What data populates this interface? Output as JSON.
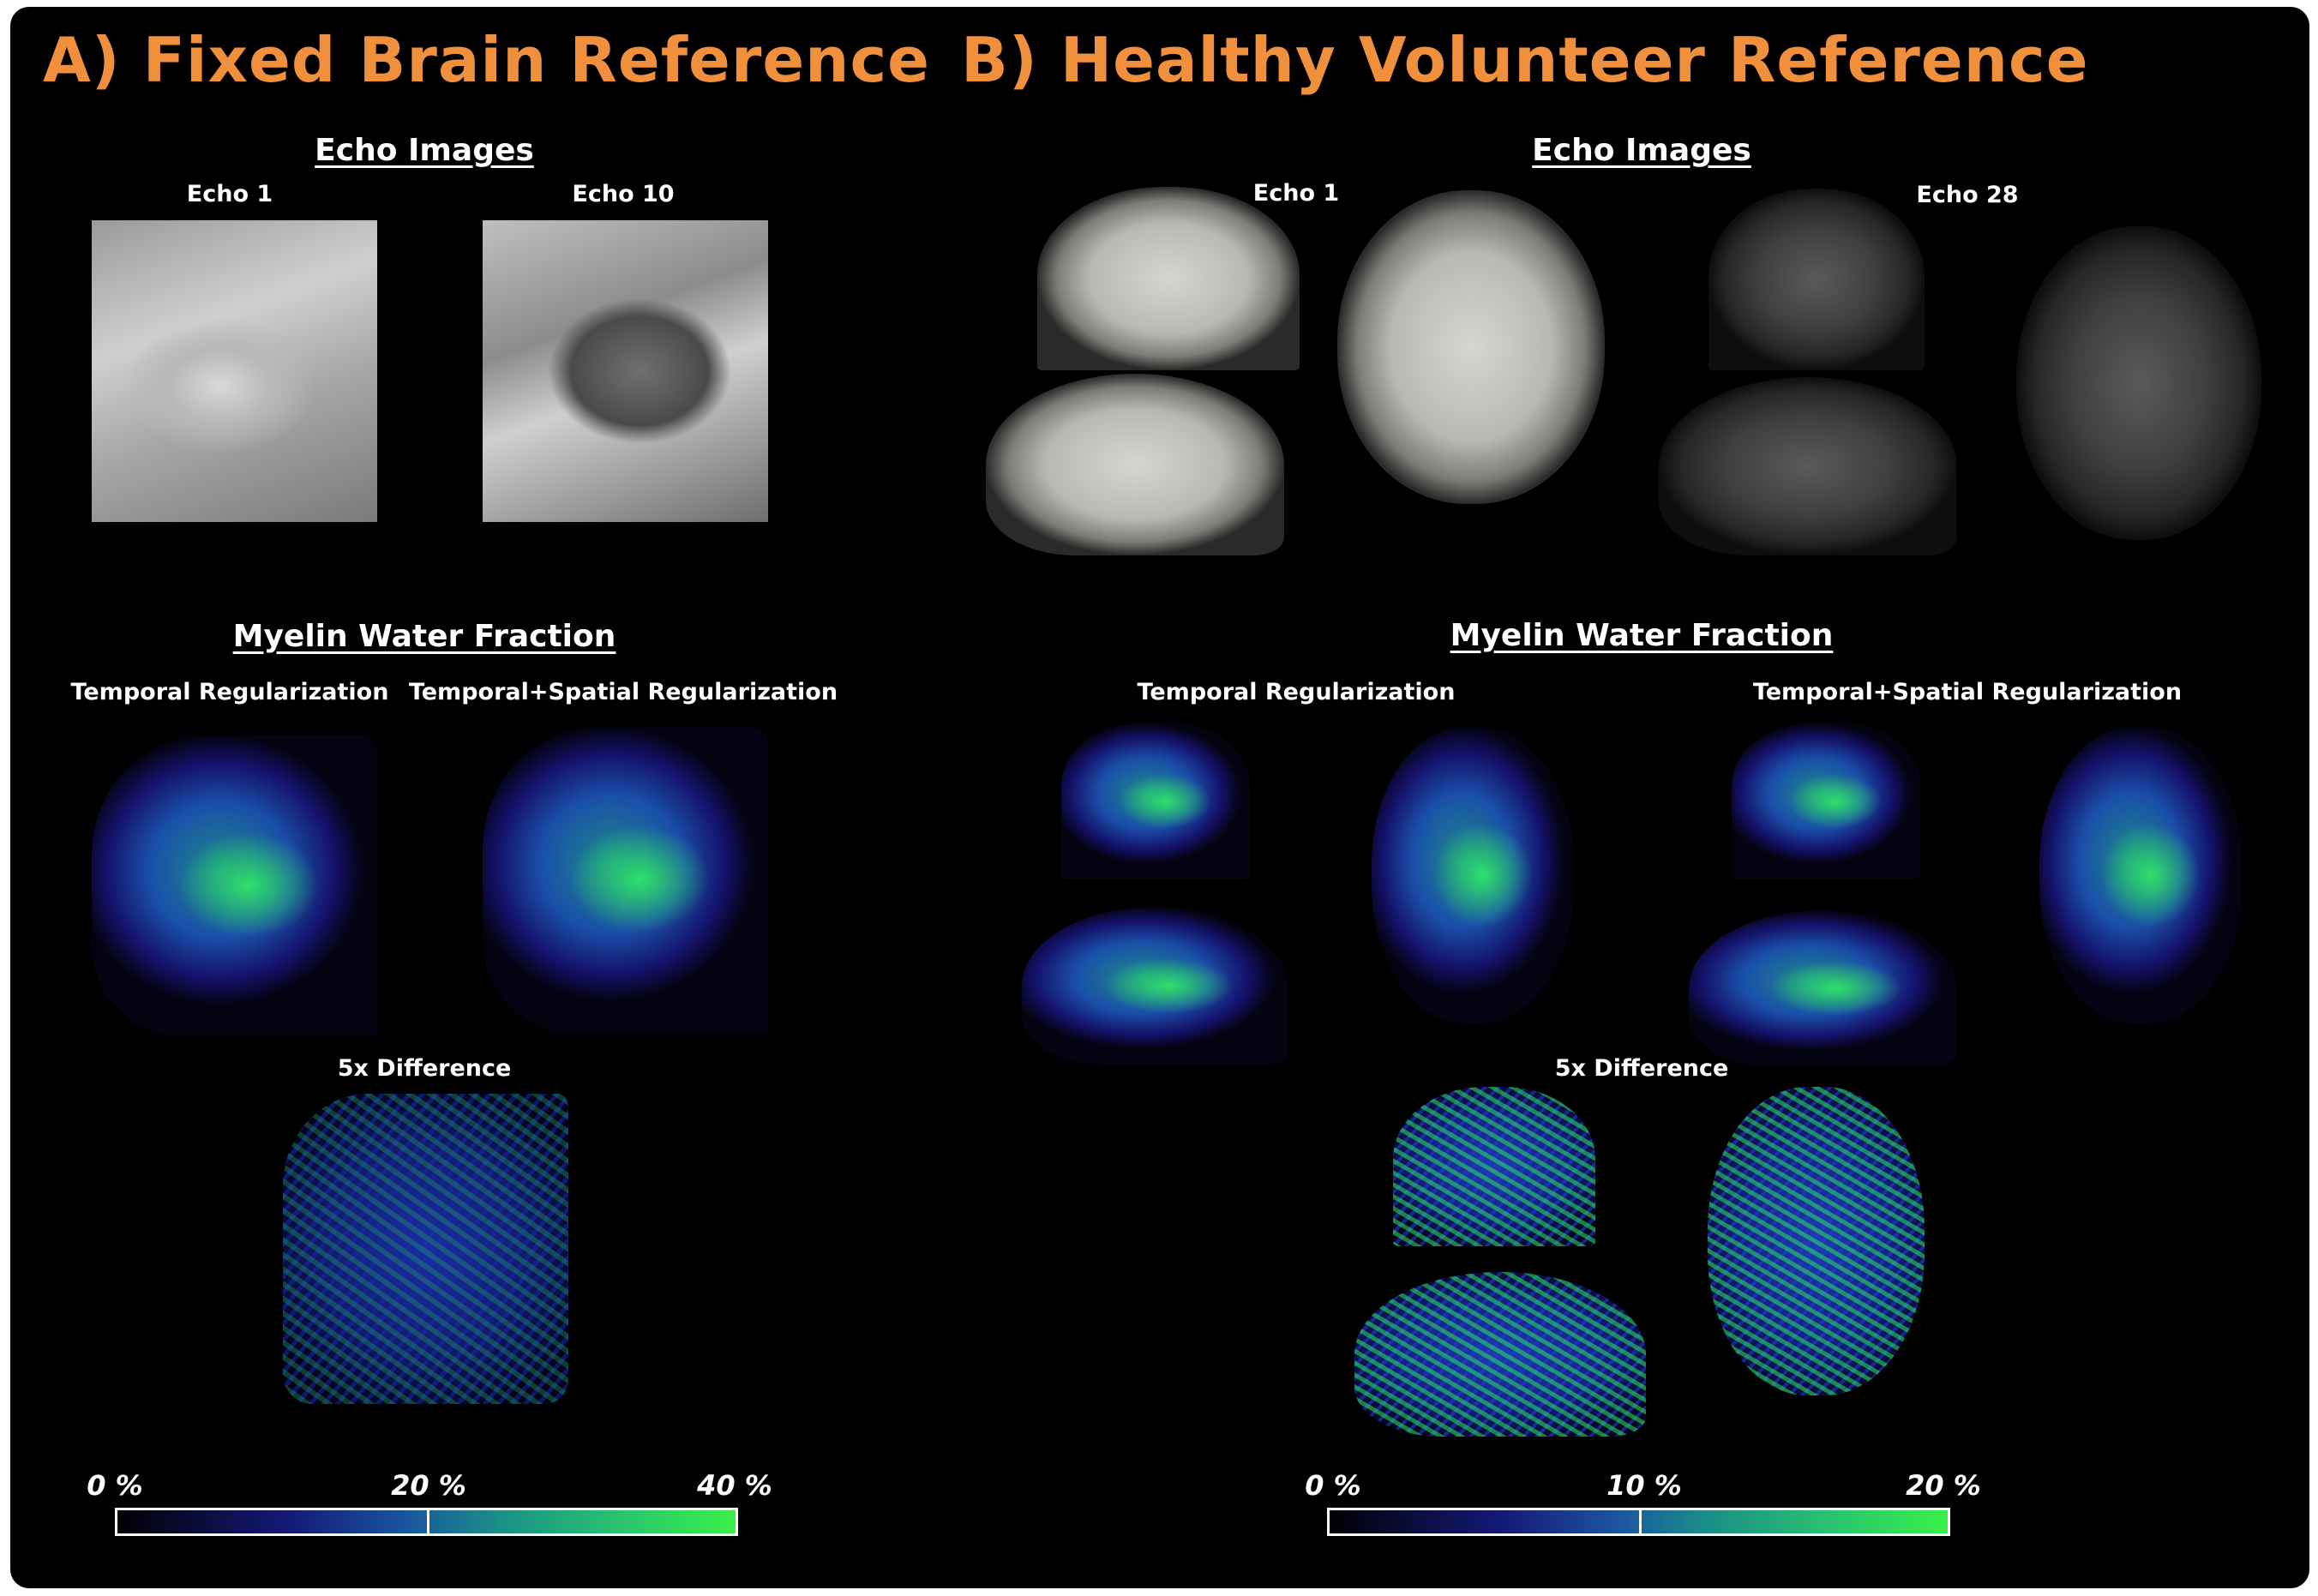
{
  "panel_a": {
    "title": "A) Fixed Brain Reference",
    "echo_section": "Echo Images",
    "echo_left_label": "Echo 1",
    "echo_right_label": "Echo 10",
    "mwf_section": "Myelin Water Fraction",
    "mwf_left_label": "Temporal Regularization",
    "mwf_right_label": "Temporal+Spatial Regularization",
    "diff_label": "5x Difference",
    "colorbar_ticks": [
      "0 %",
      "20 %",
      "40 %"
    ]
  },
  "panel_b": {
    "title": "B) Healthy Volunteer Reference",
    "echo_section": "Echo Images",
    "echo_left_label": "Echo 1",
    "echo_right_label": "Echo 28",
    "mwf_section": "Myelin Water Fraction",
    "mwf_left_label": "Temporal Regularization",
    "mwf_right_label": "Temporal+Spatial Regularization",
    "diff_label": "5x Difference",
    "colorbar_ticks": [
      "0 %",
      "10 %",
      "20 %"
    ]
  },
  "colors": {
    "title": "#f0903c",
    "background": "#000000",
    "colormap": [
      "#020005",
      "#141a78",
      "#1a4fa0",
      "#1a8a8a",
      "#28c070",
      "#3af04a"
    ]
  }
}
